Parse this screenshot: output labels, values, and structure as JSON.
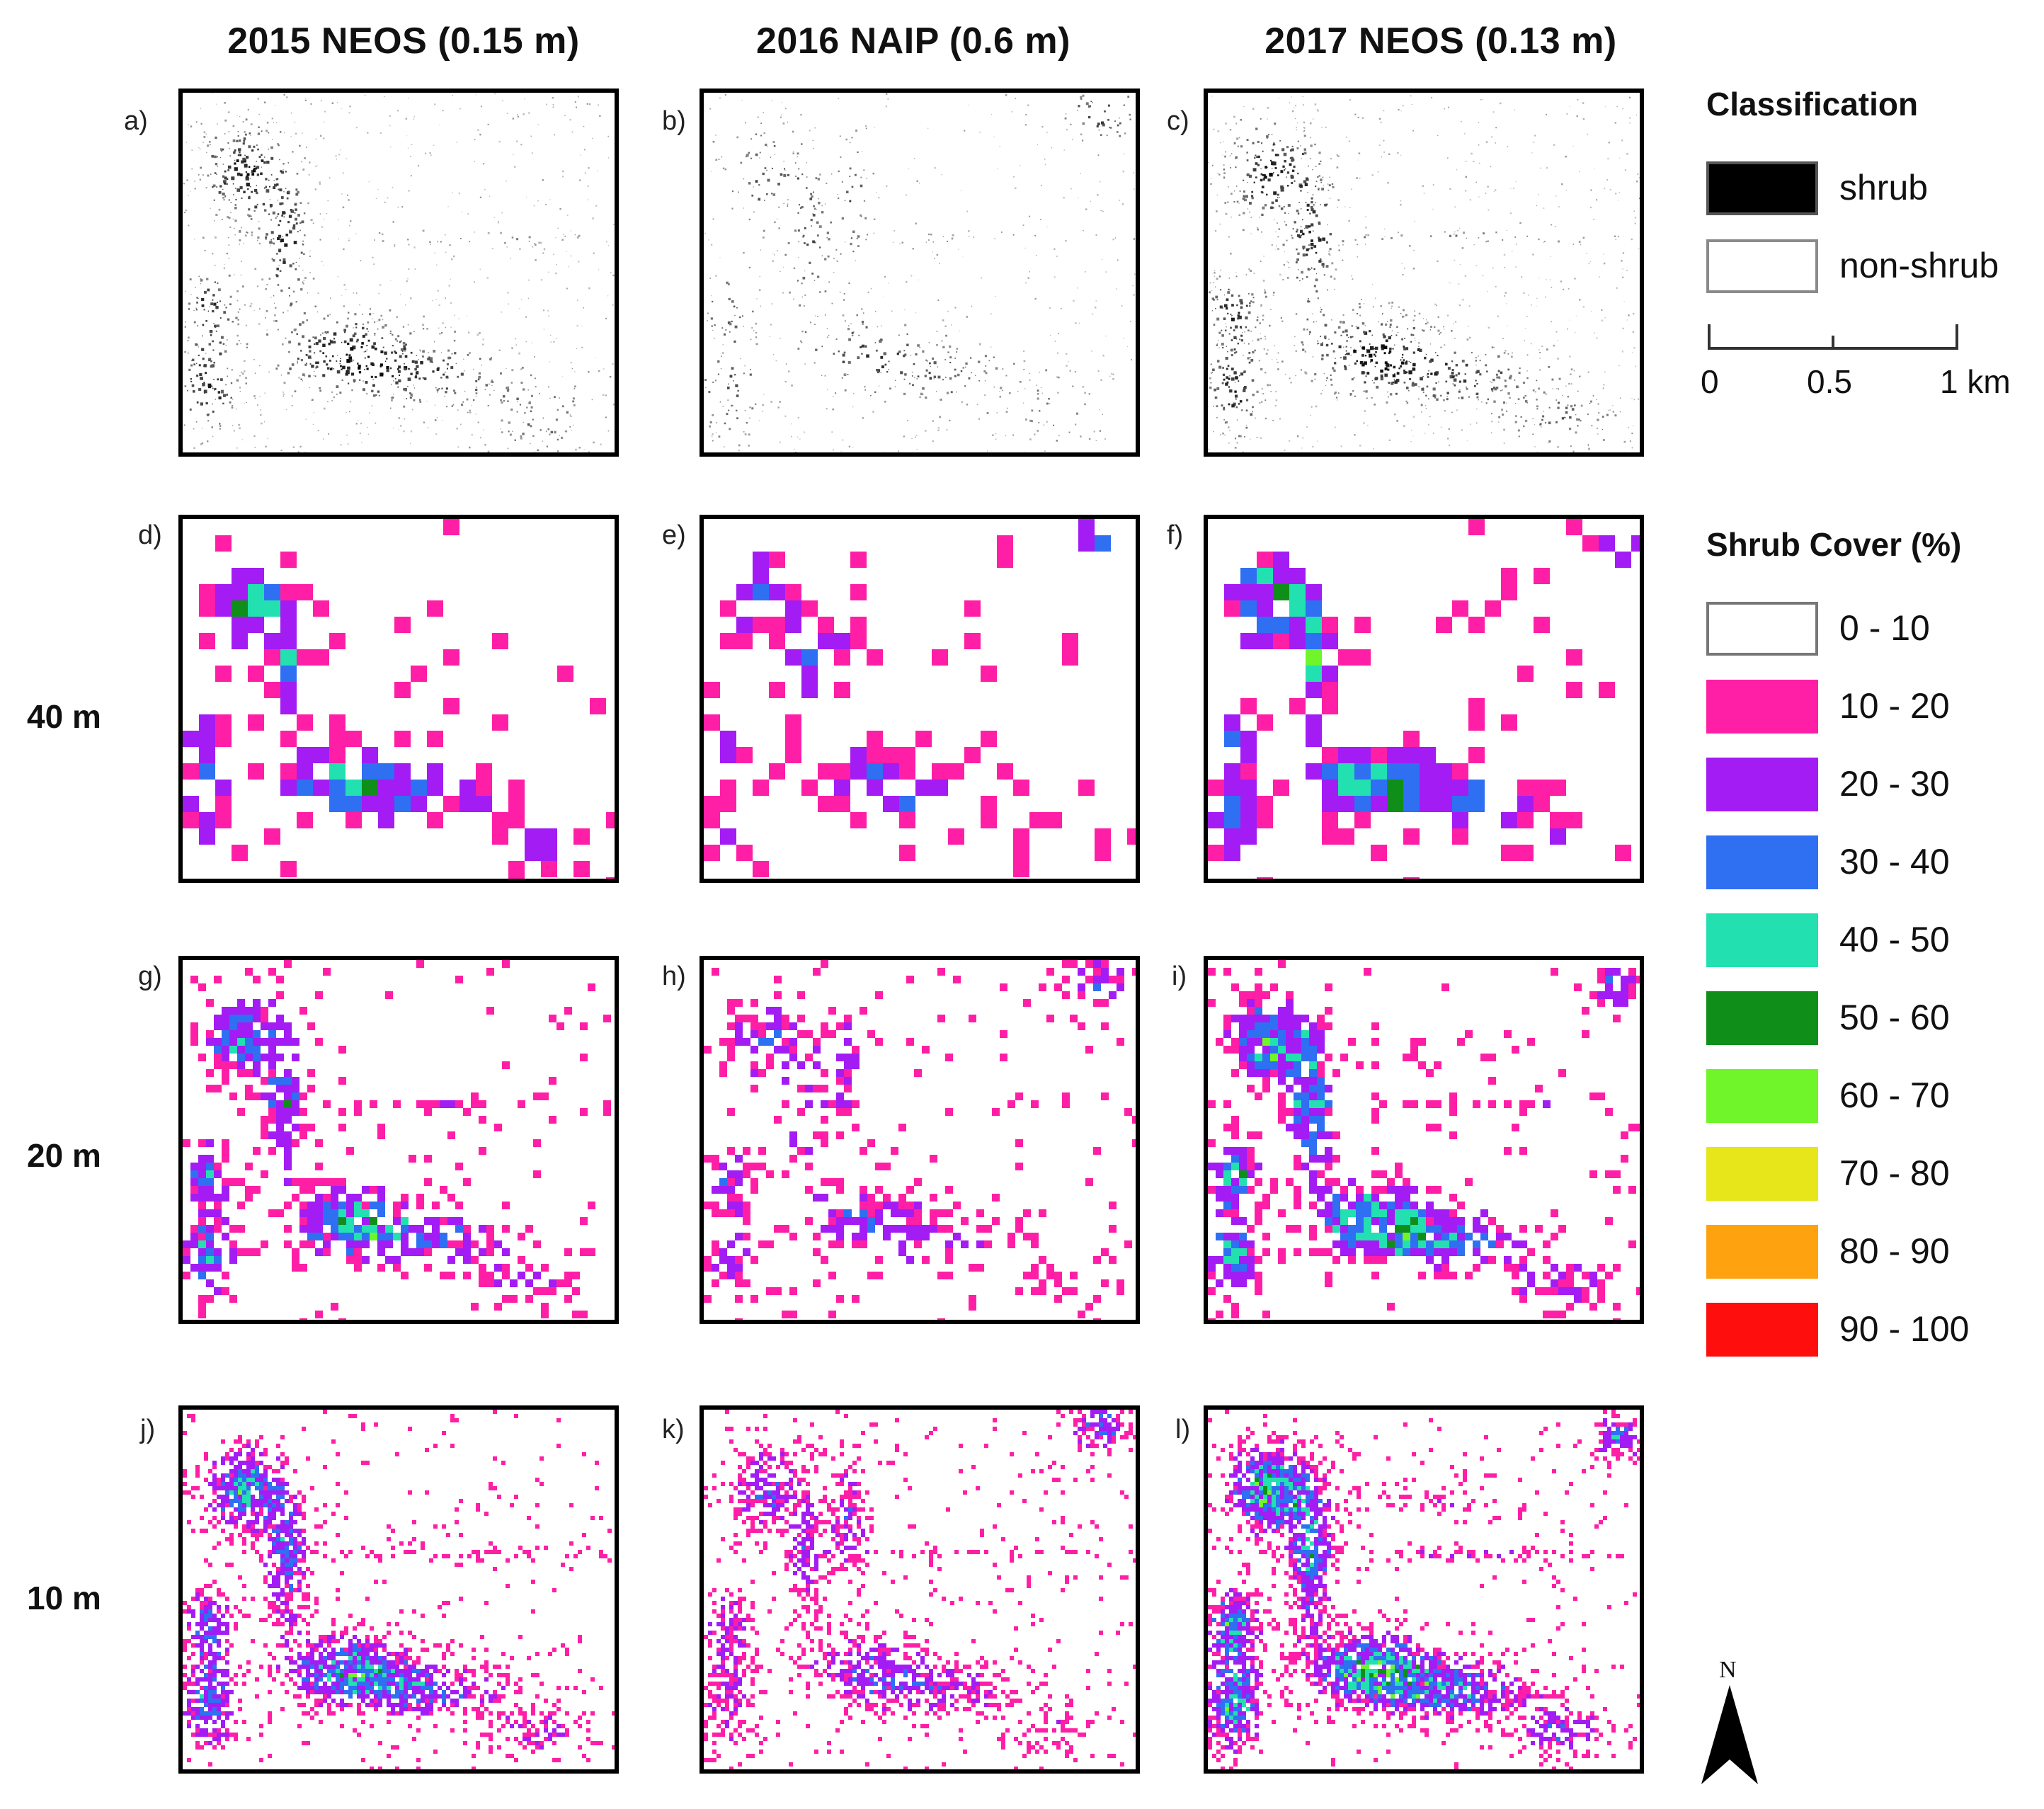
{
  "figure": {
    "column_titles": [
      "2015 NEOS (0.15 m)",
      "2016 NAIP (0.6 m)",
      "2017 NEOS (0.13 m)"
    ],
    "row_labels": [
      "40 m",
      "20 m",
      "10 m"
    ],
    "panel_letters": [
      "a)",
      "b)",
      "c)",
      "d)",
      "e)",
      "f)",
      "g)",
      "h)",
      "i)",
      "j)",
      "k)",
      "l)"
    ]
  },
  "legend_classification": {
    "title": "Classification",
    "items": [
      {
        "label": "shrub",
        "color": "#000000"
      },
      {
        "label": "non-shrub",
        "color": "#ffffff"
      }
    ]
  },
  "scale_bar": {
    "labels": [
      "0",
      "0.5",
      "1 km"
    ]
  },
  "legend_cover": {
    "title": "Shrub Cover (%)",
    "items": [
      {
        "label": "0 - 10",
        "color": "#ffffff"
      },
      {
        "label": "10 - 20",
        "color": "#ff1fa6"
      },
      {
        "label": "20 - 30",
        "color": "#a31cf3"
      },
      {
        "label": "30 - 40",
        "color": "#2f6ff2"
      },
      {
        "label": "40 - 50",
        "color": "#22e0b0"
      },
      {
        "label": "50 - 60",
        "color": "#0f8f1a"
      },
      {
        "label": "60 - 70",
        "color": "#6ff52a"
      },
      {
        "label": "70 - 80",
        "color": "#e6e61a"
      },
      {
        "label": "80 - 90",
        "color": "#ffa20f"
      },
      {
        "label": "90 - 100",
        "color": "#ff0e0e"
      }
    ]
  },
  "north_arrow": {
    "label": "N"
  }
}
